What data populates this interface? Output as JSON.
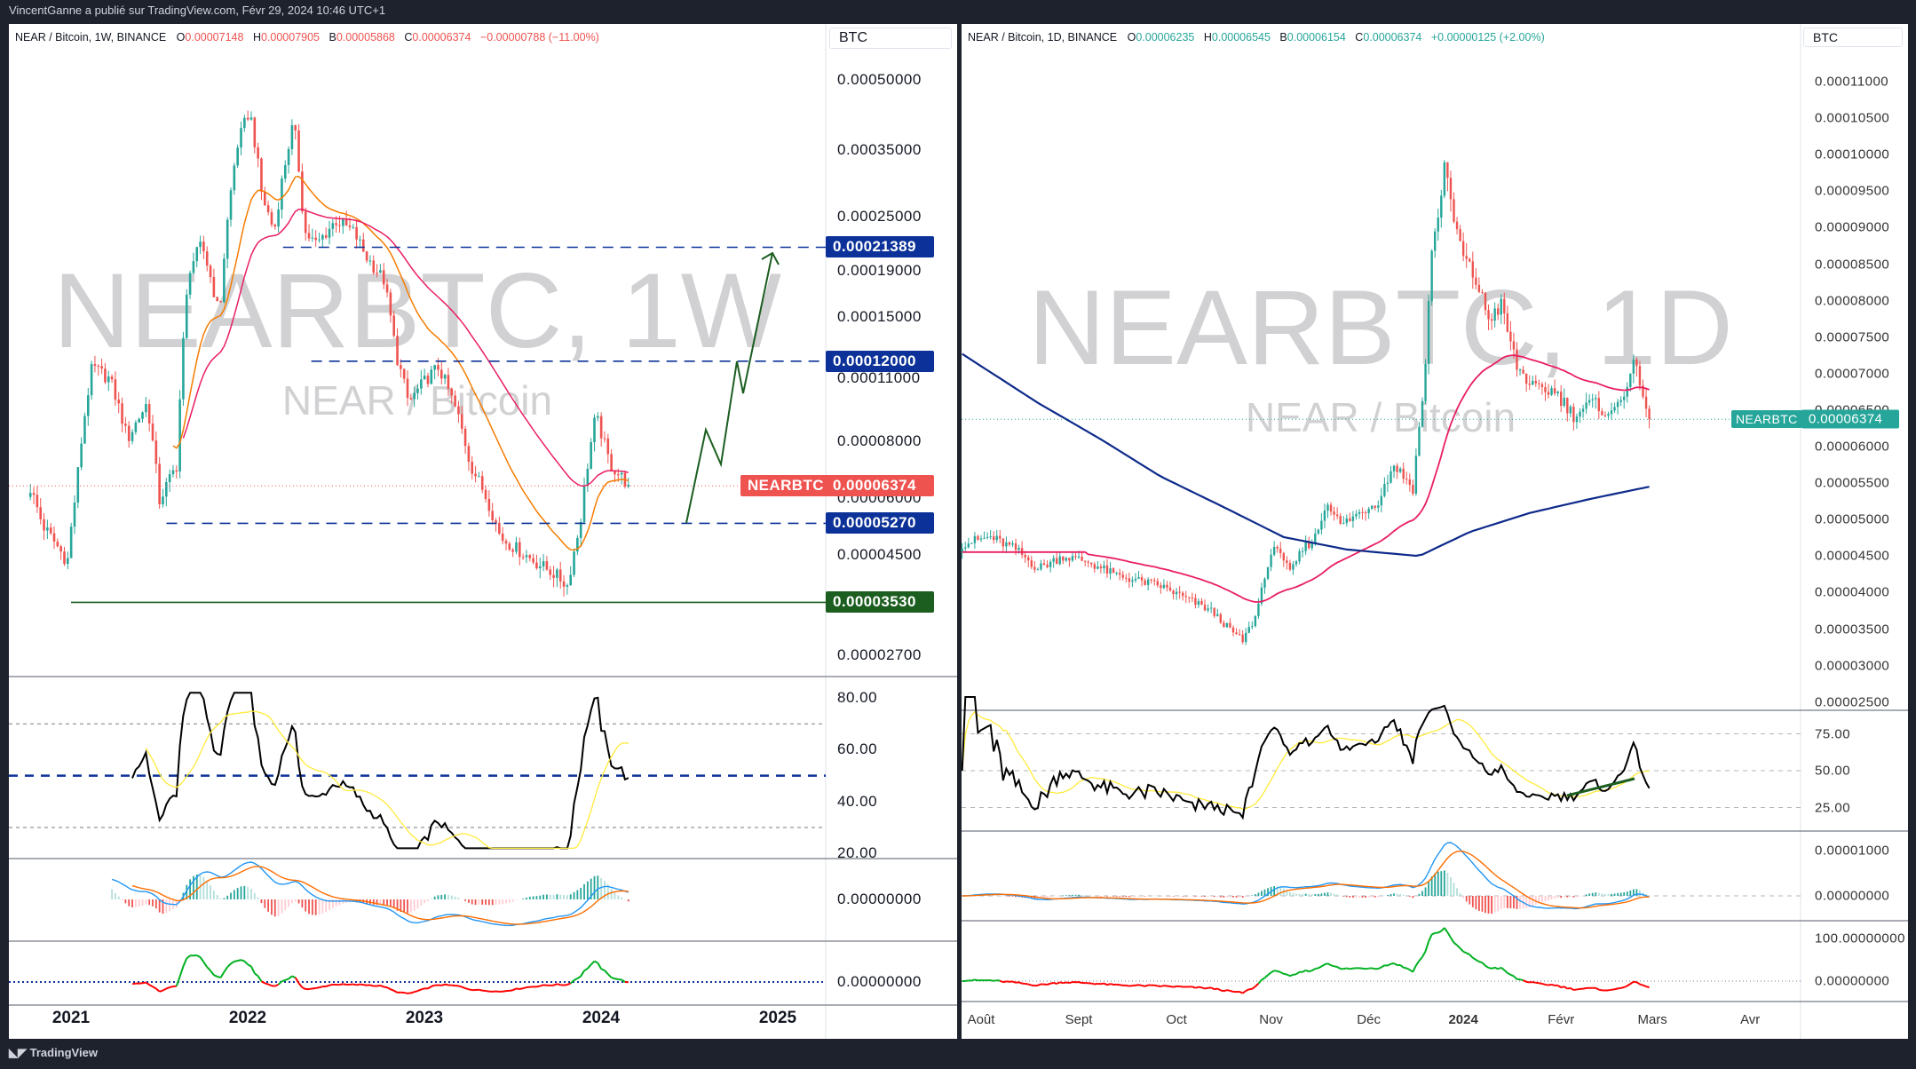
{
  "header": {
    "published": "VincentGanne a publié sur TradingView.com, Févr 29, 2024 10:46 UTC+1",
    "logo": "TradingView"
  },
  "left": {
    "legend": {
      "symbol": "NEAR / Bitcoin, 1W, BINANCE",
      "o_label": "O",
      "o": "0.00007148",
      "h_label": "H",
      "h": "0.00007905",
      "l_label": "B",
      "l": "0.00005868",
      "c_label": "C",
      "c": "0.00006374",
      "change": "−0.00000788 (−11.00%)"
    },
    "watermark": {
      "title": "NEARBTC, 1W",
      "subtitle": "NEAR / Bitcoin"
    },
    "currency": "BTC",
    "price_ticks": [
      "0.00050000",
      "0.00035000",
      "0.00025000",
      "0.00019000",
      "0.00015000",
      "0.00011000",
      "0.00008000",
      "0.00006000",
      "0.00004500",
      "0.00002700"
    ],
    "levels": [
      {
        "price": "0.00021389",
        "color": "#0c3299",
        "style": "dashed",
        "from": 2022.2
      },
      {
        "price": "0.00012000",
        "color": "#0c3299",
        "style": "dashed",
        "from": 2022.36
      },
      {
        "price": "0.00005270",
        "color": "#0c3299",
        "style": "dashed",
        "from": 2021.54
      },
      {
        "price": "0.00003530",
        "color": "#1b5e20",
        "style": "solid",
        "from": 2021.0
      }
    ],
    "last": {
      "symbol": "NEARBTC",
      "price": "0.00006374",
      "color": "#ef5350"
    },
    "rsi_ticks": [
      "80.00",
      "60.00",
      "40.00",
      "20.00"
    ],
    "macd_tick": "0.00000000",
    "osc_tick": "0.00000000",
    "time_ticks": [
      "2021",
      "2022",
      "2023",
      "2024",
      "2025"
    ]
  },
  "right": {
    "legend": {
      "symbol": "NEAR / Bitcoin, 1D, BINANCE",
      "o_label": "O",
      "o": "0.00006235",
      "h_label": "H",
      "h": "0.00006545",
      "l_label": "B",
      "l": "0.00006154",
      "c_label": "C",
      "c": "0.00006374",
      "change": "+0.00000125 (+2.00%)"
    },
    "watermark": {
      "title": "NEARBTC, 1D",
      "subtitle": "NEAR / Bitcoin"
    },
    "currency": "BTC",
    "price_ticks": [
      "0.00011000",
      "0.00010500",
      "0.00010000",
      "0.00009500",
      "0.00009000",
      "0.00008500",
      "0.00008000",
      "0.00007500",
      "0.00007000",
      "0.00006500",
      "0.00006000",
      "0.00005500",
      "0.00005000",
      "0.00004500",
      "0.00004000",
      "0.00003500",
      "0.00003000",
      "0.00002500"
    ],
    "last": {
      "symbol": "NEARBTC",
      "price": "0.00006374",
      "color": "#26a69a"
    },
    "rsi_ticks": [
      "75.00",
      "50.00",
      "25.00"
    ],
    "macd_ticks": [
      "0.00001000",
      "0.00000000"
    ],
    "osc_ticks": [
      "100.00000000",
      "0.00000000"
    ],
    "time_ticks": [
      "Août",
      "Sept",
      "Oct",
      "Nov",
      "Déc",
      "2024",
      "Févr",
      "Mars",
      "Avr"
    ]
  },
  "colors": {
    "up": "#26a69a",
    "down": "#ef5350",
    "ema_fast": "#f57c00",
    "ema_slow": "#e91e63",
    "ma200": "#0d2a8a",
    "rsi": "#000000",
    "rsi_ma": "#ffeb3b",
    "macd": "#2196f3",
    "signal": "#ff6d00",
    "osc_pos": "#00b020",
    "osc_neg": "#ff0000",
    "level_blue": "#0c3299",
    "level_green": "#1b5e20"
  },
  "chart_data": [
    {
      "type": "candlestick",
      "title": "NEAR / Bitcoin, 1W, BINANCE",
      "scale": "log",
      "ylabel": "BTC",
      "x_unit": "year",
      "close_path": [
        [
          2020.77,
          6.29e-05
        ],
        [
          2020.84,
          5.21e-05
        ],
        [
          2020.98,
          4.33e-05
        ],
        [
          2021.03,
          6.29e-05
        ],
        [
          2021.12,
          0.0001166
        ],
        [
          2021.22,
          0.0001095
        ],
        [
          2021.32,
          8.07e-05
        ],
        [
          2021.43,
          9.7e-05
        ],
        [
          2021.5,
          5.9e-05
        ],
        [
          2021.6,
          7.1e-05
        ],
        [
          2021.67,
          0.000192
        ],
        [
          2021.74,
          0.000217
        ],
        [
          2021.84,
          0.00015
        ],
        [
          2021.94,
          0.000357
        ],
        [
          2022.01,
          0.000429
        ],
        [
          2022.08,
          0.000278
        ],
        [
          2022.15,
          0.000231
        ],
        [
          2022.26,
          0.000403
        ],
        [
          2022.32,
          0.000231
        ],
        [
          2022.39,
          0.000217
        ],
        [
          2022.5,
          0.000245
        ],
        [
          2022.6,
          0.000231
        ],
        [
          2022.67,
          0.000204
        ],
        [
          2022.77,
          0.000181
        ],
        [
          2022.84,
          0.000124
        ],
        [
          2022.91,
          9.7e-05
        ],
        [
          2023.01,
          0.0001095
        ],
        [
          2023.08,
          0.0001166
        ],
        [
          2023.19,
          9.1e-05
        ],
        [
          2023.26,
          7.1e-05
        ],
        [
          2023.36,
          5.9e-05
        ],
        [
          2023.43,
          4.91e-05
        ],
        [
          2023.53,
          4.61e-05
        ],
        [
          2023.63,
          4.33e-05
        ],
        [
          2023.74,
          4.07e-05
        ],
        [
          2023.81,
          3.84e-05
        ],
        [
          2023.88,
          5.21e-05
        ],
        [
          2023.97,
          9.1e-05
        ],
        [
          2024.05,
          7.1e-05
        ],
        [
          2024.16,
          6.374e-05
        ]
      ],
      "ylim": [
        2.7e-05,
        0.0005
      ]
    },
    {
      "type": "candlestick",
      "title": "NEAR / Bitcoin, 1D, BINANCE",
      "scale": "linear",
      "ylabel": "BTC",
      "x_unit": "days since 2023-08-01",
      "y_unit": "1e-5 BTC",
      "close_path": [
        [
          -6,
          4.67
        ],
        [
          3,
          4.76
        ],
        [
          11,
          4.59
        ],
        [
          18,
          4.33
        ],
        [
          26,
          4.5
        ],
        [
          34,
          4.42
        ],
        [
          42,
          4.25
        ],
        [
          50,
          4.16
        ],
        [
          57,
          4.09
        ],
        [
          65,
          3.92
        ],
        [
          73,
          3.75
        ],
        [
          79,
          3.49
        ],
        [
          83,
          3.34
        ],
        [
          87,
          3.66
        ],
        [
          90,
          4.25
        ],
        [
          94,
          4.67
        ],
        [
          98,
          4.25
        ],
        [
          102,
          4.59
        ],
        [
          106,
          4.76
        ],
        [
          110,
          5.26
        ],
        [
          114,
          4.92
        ],
        [
          120,
          5.09
        ],
        [
          126,
          5.26
        ],
        [
          131,
          5.76
        ],
        [
          137,
          5.43
        ],
        [
          141,
          7.09
        ],
        [
          143,
          8.77
        ],
        [
          145,
          9.1
        ],
        [
          147,
          9.94
        ],
        [
          149,
          9.27
        ],
        [
          153,
          8.6
        ],
        [
          157,
          8.27
        ],
        [
          161,
          7.76
        ],
        [
          165,
          7.93
        ],
        [
          170,
          7.09
        ],
        [
          176,
          6.77
        ],
        [
          182,
          6.77
        ],
        [
          188,
          6.43
        ],
        [
          194,
          6.6
        ],
        [
          200,
          6.43
        ],
        [
          204,
          6.77
        ],
        [
          207,
          7.09
        ],
        [
          209,
          6.92
        ],
        [
          212,
          6.374
        ]
      ],
      "ma200_path": [
        [
          -6,
          7.27
        ],
        [
          18,
          6.6
        ],
        [
          38,
          6.1
        ],
        [
          57,
          5.59
        ],
        [
          77,
          5.17
        ],
        [
          96,
          4.76
        ],
        [
          116,
          4.59
        ],
        [
          139,
          4.5
        ],
        [
          155,
          4.83
        ],
        [
          174,
          5.09
        ],
        [
          194,
          5.29
        ],
        [
          212,
          5.45
        ]
      ],
      "ylim": [
        2.5,
        11
      ]
    }
  ]
}
